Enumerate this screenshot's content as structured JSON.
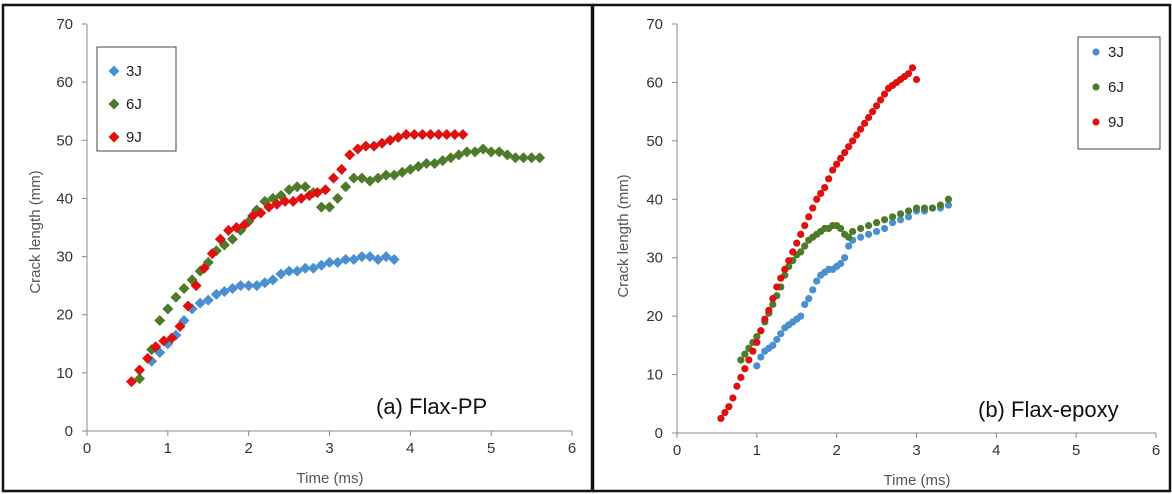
{
  "chart_data": [
    {
      "type": "scatter",
      "annotation": "(a) Flax-PP",
      "xlabel": "Time (ms)",
      "ylabel": "Crack length (mm)",
      "xlim": [
        0,
        6
      ],
      "ylim": [
        0,
        70
      ],
      "xticks": [
        "0",
        "1",
        "2",
        "3",
        "4",
        "5",
        "6"
      ],
      "yticks": [
        "0",
        "10",
        "20",
        "30",
        "40",
        "50",
        "60",
        "70"
      ],
      "grid": false,
      "legend_position": "top-left",
      "marker": "diamond",
      "series": [
        {
          "name": "3J",
          "color": "#4a90d0",
          "x": [
            0.8,
            0.9,
            1.0,
            1.1,
            1.2,
            1.3,
            1.4,
            1.5,
            1.6,
            1.7,
            1.8,
            1.9,
            2.0,
            2.1,
            2.2,
            2.3,
            2.4,
            2.5,
            2.6,
            2.7,
            2.8,
            2.9,
            3.0,
            3.1,
            3.2,
            3.3,
            3.4,
            3.5,
            3.6,
            3.7,
            3.8
          ],
          "y": [
            12,
            13.5,
            15,
            16.5,
            19,
            21,
            22,
            22.5,
            23.5,
            24,
            24.5,
            25,
            25,
            25,
            25.5,
            26,
            27,
            27.5,
            27.5,
            28,
            28,
            28.5,
            29,
            29,
            29.5,
            29.5,
            30,
            30,
            29.5,
            30,
            29.5
          ]
        },
        {
          "name": "6J",
          "color": "#4e7a2a",
          "x": [
            0.65,
            0.8,
            0.9,
            1.0,
            1.1,
            1.2,
            1.3,
            1.4,
            1.5,
            1.6,
            1.7,
            1.8,
            1.9,
            2.0,
            2.1,
            2.2,
            2.3,
            2.4,
            2.5,
            2.6,
            2.7,
            2.8,
            2.9,
            3.0,
            3.1,
            3.2,
            3.3,
            3.4,
            3.5,
            3.6,
            3.7,
            3.8,
            3.9,
            4.0,
            4.1,
            4.2,
            4.3,
            4.4,
            4.5,
            4.6,
            4.7,
            4.8,
            4.9,
            5.0,
            5.1,
            5.2,
            5.3,
            5.4,
            5.5,
            5.6
          ],
          "y": [
            9,
            14,
            19,
            21,
            23,
            24.5,
            26,
            27.5,
            29,
            31,
            32,
            33,
            34.5,
            36,
            38,
            39.5,
            40,
            40.5,
            41.5,
            42,
            42,
            41,
            38.5,
            38.5,
            40,
            42,
            43.5,
            43.5,
            43,
            43.5,
            44,
            44,
            44.5,
            45,
            45.5,
            46,
            46,
            46.5,
            47,
            47.5,
            48,
            48,
            48.5,
            48,
            48,
            47.5,
            47,
            47,
            47,
            47
          ]
        },
        {
          "name": "9J",
          "color": "#e01010",
          "x": [
            0.55,
            0.65,
            0.75,
            0.85,
            0.95,
            1.05,
            1.15,
            1.25,
            1.35,
            1.45,
            1.55,
            1.65,
            1.75,
            1.85,
            1.95,
            2.05,
            2.15,
            2.25,
            2.35,
            2.45,
            2.55,
            2.65,
            2.75,
            2.85,
            2.95,
            3.05,
            3.15,
            3.25,
            3.35,
            3.45,
            3.55,
            3.65,
            3.75,
            3.85,
            3.95,
            4.05,
            4.15,
            4.25,
            4.35,
            4.45,
            4.55,
            4.65
          ],
          "y": [
            8.5,
            10.5,
            12.5,
            14.5,
            15.5,
            16,
            18,
            21.5,
            25,
            28,
            30.5,
            33,
            34.5,
            35,
            35.5,
            37,
            37.5,
            38.5,
            39,
            39.5,
            39.5,
            40,
            40.5,
            41,
            41.5,
            43.5,
            45,
            47.5,
            48.5,
            49,
            49,
            49.5,
            50,
            50.5,
            51,
            51,
            51,
            51,
            51,
            51,
            51,
            51
          ]
        }
      ]
    },
    {
      "type": "scatter",
      "annotation": "(b) Flax-epoxy",
      "xlabel": "Time (ms)",
      "ylabel": "Crack length (mm)",
      "xlim": [
        0,
        6
      ],
      "ylim": [
        0,
        70
      ],
      "xticks": [
        "0",
        "1",
        "2",
        "3",
        "4",
        "5",
        "6"
      ],
      "yticks": [
        "0",
        "10",
        "20",
        "30",
        "40",
        "50",
        "60",
        "70"
      ],
      "grid": false,
      "legend_position": "top-right",
      "marker": "circle",
      "series": [
        {
          "name": "3J",
          "color": "#4a90d0",
          "x": [
            1.0,
            1.05,
            1.1,
            1.15,
            1.2,
            1.25,
            1.3,
            1.35,
            1.4,
            1.45,
            1.5,
            1.55,
            1.6,
            1.65,
            1.7,
            1.75,
            1.8,
            1.85,
            1.9,
            1.95,
            2.0,
            2.05,
            2.1,
            2.15,
            2.2,
            2.3,
            2.4,
            2.5,
            2.6,
            2.7,
            2.8,
            2.9,
            3.0,
            3.1,
            3.2,
            3.3,
            3.4
          ],
          "y": [
            11.5,
            13,
            14,
            14.5,
            15,
            16,
            17,
            18,
            18.5,
            19,
            19.5,
            20,
            22,
            23,
            24.5,
            26,
            27,
            27.5,
            28,
            28,
            28.5,
            29,
            30,
            32,
            33,
            33.5,
            34,
            34.5,
            35,
            36,
            36.5,
            37,
            38,
            38,
            38.5,
            38.5,
            39
          ]
        },
        {
          "name": "6J",
          "color": "#4e7a2a",
          "x": [
            0.8,
            0.85,
            0.9,
            0.95,
            1.0,
            1.05,
            1.1,
            1.15,
            1.2,
            1.25,
            1.3,
            1.35,
            1.4,
            1.45,
            1.5,
            1.55,
            1.6,
            1.65,
            1.7,
            1.75,
            1.8,
            1.85,
            1.9,
            1.95,
            2.0,
            2.05,
            2.1,
            2.15,
            2.2,
            2.3,
            2.4,
            2.5,
            2.6,
            2.7,
            2.8,
            2.9,
            3.0,
            3.1,
            3.2,
            3.3,
            3.4
          ],
          "y": [
            12.5,
            13.5,
            14.5,
            15.5,
            16.5,
            17.5,
            19,
            20.5,
            22,
            23.5,
            25,
            27,
            28.5,
            29.5,
            30.5,
            31,
            32,
            33,
            33.5,
            34,
            34.5,
            35,
            35,
            35.5,
            35.5,
            35,
            34,
            33.5,
            34.5,
            35,
            35.5,
            36,
            36.5,
            37,
            37.5,
            38,
            38.5,
            38.5,
            38.5,
            39,
            40
          ]
        },
        {
          "name": "9J",
          "color": "#e01010",
          "x": [
            0.55,
            0.6,
            0.65,
            0.7,
            0.75,
            0.8,
            0.85,
            0.9,
            0.95,
            1.0,
            1.05,
            1.1,
            1.15,
            1.2,
            1.25,
            1.3,
            1.35,
            1.4,
            1.45,
            1.5,
            1.55,
            1.6,
            1.65,
            1.7,
            1.75,
            1.8,
            1.85,
            1.9,
            1.95,
            2.0,
            2.05,
            2.1,
            2.15,
            2.2,
            2.25,
            2.3,
            2.35,
            2.4,
            2.45,
            2.5,
            2.55,
            2.6,
            2.65,
            2.7,
            2.75,
            2.8,
            2.85,
            2.9,
            2.95,
            3.0
          ],
          "y": [
            2.5,
            3.5,
            4.5,
            6,
            8,
            9.5,
            11,
            12.5,
            14,
            15.5,
            17.5,
            19.5,
            21,
            23,
            25,
            26.5,
            28,
            29.5,
            31,
            32.5,
            34,
            35.5,
            37,
            38.5,
            40,
            41,
            42,
            43.5,
            45,
            46,
            47,
            48,
            49,
            50,
            51,
            52,
            53,
            54,
            55,
            56,
            57,
            58,
            59,
            59.5,
            60,
            60.5,
            61,
            61.5,
            62.5,
            60.5
          ]
        }
      ]
    }
  ]
}
